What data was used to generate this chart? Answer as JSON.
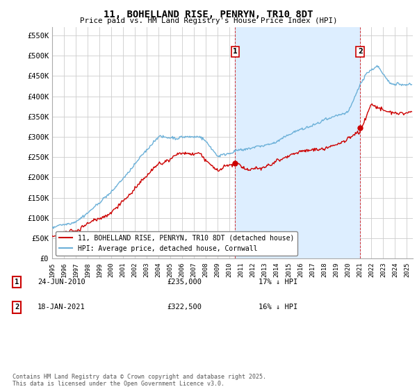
{
  "title": "11, BOHELLAND RISE, PENRYN, TR10 8DT",
  "subtitle": "Price paid vs. HM Land Registry's House Price Index (HPI)",
  "ylabel_ticks": [
    "£0",
    "£50K",
    "£100K",
    "£150K",
    "£200K",
    "£250K",
    "£300K",
    "£350K",
    "£400K",
    "£450K",
    "£500K",
    "£550K"
  ],
  "ytick_values": [
    0,
    50000,
    100000,
    150000,
    200000,
    250000,
    300000,
    350000,
    400000,
    450000,
    500000,
    550000
  ],
  "ylim": [
    0,
    570000
  ],
  "xlim_start": 1995.0,
  "xlim_end": 2025.5,
  "marker1_x": 2010.48,
  "marker1_y": 235000,
  "marker2_x": 2021.05,
  "marker2_y": 322500,
  "line1_color": "#cc0000",
  "line2_color": "#6bb0d8",
  "shade_color": "#ddeeff",
  "grid_color": "#cccccc",
  "background_color": "#ffffff",
  "legend1_label": "11, BOHELLAND RISE, PENRYN, TR10 8DT (detached house)",
  "legend2_label": "HPI: Average price, detached house, Cornwall",
  "footer": "Contains HM Land Registry data © Crown copyright and database right 2025.\nThis data is licensed under the Open Government Licence v3.0.",
  "table_rows": [
    {
      "num": "1",
      "date": "24-JUN-2010",
      "price": "£235,000",
      "hpi": "17% ↓ HPI"
    },
    {
      "num": "2",
      "date": "18-JAN-2021",
      "price": "£322,500",
      "hpi": "16% ↓ HPI"
    }
  ]
}
